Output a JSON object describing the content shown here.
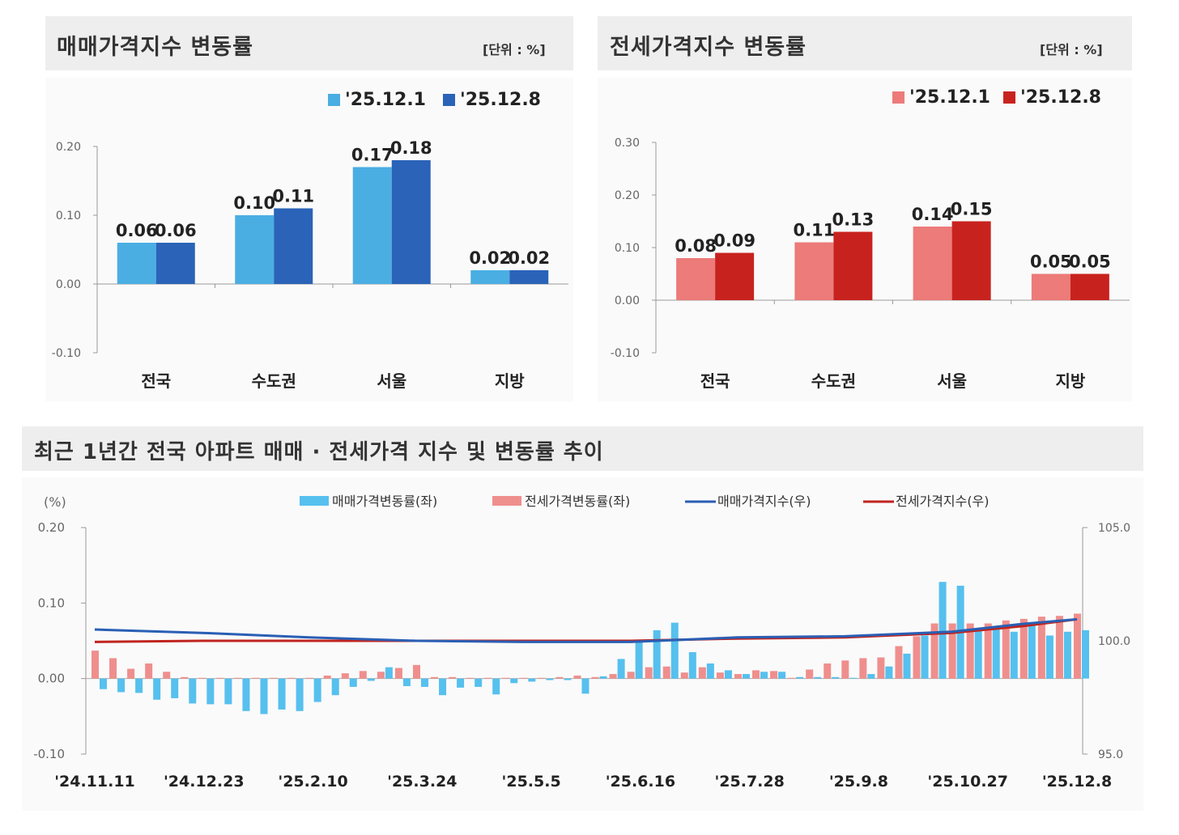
{
  "colors": {
    "sale_prev": "#4aaee3",
    "sale_curr": "#2a63b8",
    "jeonse_prev": "#ec7b79",
    "jeonse_curr": "#c8221e",
    "sale_index_line": "#2a5fb4",
    "jeonse_index_line": "#c0241f",
    "bottom_sale_bar": "#56c0ee",
    "bottom_jeonse_bar": "#ef8f8d"
  },
  "panels": {
    "sale": {
      "title": "매매가격지수  변동률",
      "unit": "[단위 : %]"
    },
    "jeonse": {
      "title": "전세가격지수  변동률",
      "unit": "[단위 : %]"
    },
    "trend": {
      "title": "최근 1년간 전국 아파트 매매 · 전세가격 지수 및 변동률 추이"
    }
  },
  "chart_data": [
    {
      "type": "bar",
      "categories": [
        "전국",
        "수도권",
        "서울",
        "지방"
      ],
      "series": [
        {
          "name": "'25.12.1",
          "values": [
            0.06,
            0.1,
            0.17,
            0.02
          ]
        },
        {
          "name": "'25.12.8",
          "values": [
            0.06,
            0.11,
            0.18,
            0.02
          ]
        }
      ],
      "ylim": [
        -0.1,
        0.2
      ],
      "yticks": [
        "0.20",
        "0.10",
        "0.00",
        "-0.10"
      ],
      "data_labels": [
        [
          "0.06",
          "0.10",
          "0.17",
          "0.02"
        ],
        [
          "0.06",
          "0.11",
          "0.18",
          "0.02"
        ]
      ],
      "legend": "top-right"
    },
    {
      "type": "bar",
      "categories": [
        "전국",
        "수도권",
        "서울",
        "지방"
      ],
      "series": [
        {
          "name": "'25.12.1",
          "values": [
            0.08,
            0.11,
            0.14,
            0.05
          ]
        },
        {
          "name": "'25.12.8",
          "values": [
            0.09,
            0.13,
            0.15,
            0.05
          ]
        }
      ],
      "ylim": [
        -0.1,
        0.3
      ],
      "yticks": [
        "0.30",
        "0.20",
        "0.10",
        "0.00",
        "-0.10"
      ],
      "data_labels": [
        [
          "0.08",
          "0.11",
          "0.14",
          "0.05"
        ],
        [
          "0.09",
          "0.13",
          "0.15",
          "0.05"
        ]
      ],
      "legend": "top-right"
    },
    {
      "type": "bar",
      "y_unit": "(%)",
      "ylim_left": [
        -0.1,
        0.2
      ],
      "ylim_right": [
        95.0,
        105.0
      ],
      "yticks_left": [
        "0.20",
        "0.10",
        "0.00",
        "-0.10"
      ],
      "yticks_right": [
        "105.0",
        "100.0",
        "95.0"
      ],
      "xtick_labels": [
        "'24.11.11",
        "'24.12.23",
        "'25.2.10",
        "'25.3.24",
        "'25.5.5",
        "'25.6.16",
        "'25.7.28",
        "'25.9.8",
        "'25.10.27",
        "'25.12.8"
      ],
      "legend": "top",
      "series": [
        {
          "name": "매매가격변동률(좌)",
          "kind": "bar",
          "axis": "left",
          "values": [
            -0.014,
            -0.018,
            -0.019,
            -0.028,
            -0.026,
            -0.033,
            -0.034,
            -0.034,
            -0.043,
            -0.047,
            -0.041,
            -0.043,
            -0.031,
            -0.022,
            -0.011,
            -0.003,
            0.015,
            -0.01,
            -0.011,
            -0.022,
            -0.012,
            -0.011,
            -0.021,
            -0.006,
            -0.004,
            -0.002,
            -0.002,
            -0.02,
            0.003,
            0.026,
            0.048,
            0.064,
            0.074,
            0.035,
            0.02,
            0.011,
            0.006,
            0.009,
            0.009,
            0.002,
            0.002,
            0.002,
            0.001,
            0.006,
            0.016,
            0.033,
            0.057,
            0.128,
            0.123,
            0.067,
            0.067,
            0.062,
            0.073,
            0.057,
            0.062,
            0.064
          ]
        },
        {
          "name": "전세가격변동률(좌)",
          "kind": "bar",
          "axis": "left",
          "values": [
            0.037,
            0.027,
            0.013,
            0.02,
            0.009,
            0.002,
            0.001,
            0.001,
            0.001,
            0.001,
            0.001,
            0.001,
            0.001,
            0.004,
            0.007,
            0.01,
            0.009,
            0.014,
            0.018,
            0.002,
            0.002,
            0.001,
            0.001,
            0.001,
            0.001,
            0.001,
            0.002,
            0.004,
            0.002,
            0.006,
            0.009,
            0.015,
            0.016,
            0.008,
            0.015,
            0.008,
            0.006,
            0.011,
            0.01,
            0.001,
            0.012,
            0.02,
            0.024,
            0.027,
            0.028,
            0.043,
            0.056,
            0.073,
            0.073,
            0.073,
            0.073,
            0.077,
            0.079,
            0.082,
            0.083,
            0.086
          ]
        },
        {
          "name": "매매가격지수(우)",
          "kind": "line",
          "axis": "right",
          "points": [
            [
              0,
              100.5
            ],
            [
              6,
              100.35
            ],
            [
              12,
              100.15
            ],
            [
              18,
              100.0
            ],
            [
              24,
              99.95
            ],
            [
              30,
              99.95
            ],
            [
              36,
              100.15
            ],
            [
              42,
              100.2
            ],
            [
              48,
              100.4
            ],
            [
              52,
              100.75
            ],
            [
              55,
              100.95
            ]
          ]
        },
        {
          "name": "전세가격지수(우)",
          "kind": "line",
          "axis": "right",
          "points": [
            [
              0,
              99.95
            ],
            [
              6,
              100.0
            ],
            [
              12,
              100.0
            ],
            [
              18,
              100.0
            ],
            [
              24,
              100.0
            ],
            [
              30,
              100.0
            ],
            [
              36,
              100.1
            ],
            [
              42,
              100.15
            ],
            [
              48,
              100.35
            ],
            [
              52,
              100.65
            ],
            [
              55,
              100.95
            ]
          ]
        }
      ]
    }
  ]
}
